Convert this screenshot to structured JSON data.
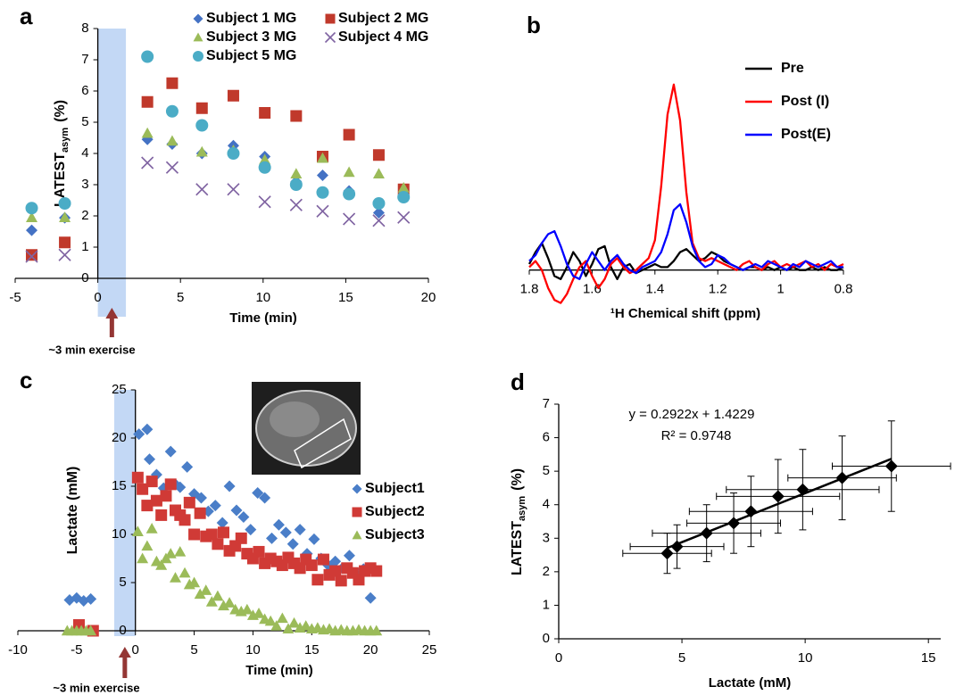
{
  "chart_data": [
    {
      "type": "scatter",
      "panel": "a",
      "ylabel": "LATEST",
      "ylabel_sub": "asym",
      "ylabel_unit": "(%)",
      "xlabel": "Time (min)",
      "annotation": "~3 min exercise",
      "xlim": [
        -5,
        20
      ],
      "xticks": [
        -5,
        0,
        5,
        10,
        15,
        20
      ],
      "ylim": [
        0,
        8
      ],
      "yticks": [
        0,
        1,
        2,
        3,
        4,
        5,
        6,
        7,
        8
      ],
      "shade_x": [
        0,
        1.7
      ],
      "x": [
        -4,
        -2,
        3,
        4.5,
        6.3,
        8.2,
        10.1,
        12,
        13.6,
        15.2,
        17,
        18.5
      ],
      "series": [
        {
          "name": "Subject 1 MG",
          "color": "#4472c4",
          "marker": "diamond",
          "values": [
            1.54,
            1.94,
            4.45,
            4.3,
            4.0,
            4.25,
            3.9,
            3.1,
            3.3,
            2.8,
            2.1,
            2.6
          ]
        },
        {
          "name": "Subject 2 MG",
          "color": "#c0392b",
          "marker": "square",
          "values": [
            0.75,
            1.15,
            5.65,
            6.25,
            5.45,
            5.85,
            5.3,
            5.2,
            3.9,
            4.6,
            3.95,
            2.85
          ]
        },
        {
          "name": "Subject 3 MG",
          "color": "#9bbb59",
          "marker": "triangle",
          "values": [
            1.95,
            1.95,
            4.65,
            4.4,
            4.05,
            4.1,
            3.8,
            3.35,
            3.85,
            3.4,
            3.35,
            2.9
          ]
        },
        {
          "name": "Subject 4 MG",
          "color": "#8064a2",
          "marker": "x",
          "values": [
            0.7,
            0.75,
            3.7,
            3.55,
            2.85,
            2.85,
            2.45,
            2.35,
            2.15,
            1.9,
            1.85,
            1.95
          ]
        },
        {
          "name": "Subject 5 MG",
          "color": "#4bacc6",
          "marker": "circle",
          "values": [
            2.25,
            2.4,
            7.1,
            5.35,
            4.9,
            4.0,
            3.55,
            3.0,
            2.75,
            2.7,
            2.4,
            2.6
          ]
        }
      ]
    },
    {
      "type": "line",
      "panel": "b",
      "xlabel": "¹H Chemical shift (ppm)",
      "xlim": [
        1.8,
        0.8
      ],
      "xticks": [
        1.8,
        1.6,
        1.4,
        1.2,
        1,
        0.8
      ],
      "ylim": [
        -1.5,
        7
      ],
      "x": [
        1.8,
        1.78,
        1.76,
        1.74,
        1.72,
        1.7,
        1.68,
        1.66,
        1.64,
        1.62,
        1.6,
        1.58,
        1.56,
        1.54,
        1.52,
        1.5,
        1.48,
        1.46,
        1.44,
        1.42,
        1.4,
        1.38,
        1.36,
        1.34,
        1.32,
        1.3,
        1.28,
        1.26,
        1.24,
        1.22,
        1.2,
        1.18,
        1.16,
        1.14,
        1.12,
        1.1,
        1.08,
        1.06,
        1.04,
        1.02,
        1.0,
        0.98,
        0.96,
        0.94,
        0.92,
        0.9,
        0.88,
        0.86,
        0.84,
        0.82,
        0.8
      ],
      "series": [
        {
          "name": "Pre",
          "color": "#000000",
          "values": [
            0.2,
            0.6,
            0.9,
            0.4,
            -0.2,
            -0.3,
            0.1,
            0.6,
            0.3,
            -0.2,
            0.2,
            0.7,
            0.8,
            0.1,
            -0.3,
            0.1,
            0.2,
            -0.1,
            0,
            0.1,
            0.2,
            0.1,
            0.1,
            0.3,
            0.6,
            0.7,
            0.5,
            0.3,
            0.4,
            0.6,
            0.5,
            0.3,
            0.2,
            0.1,
            0,
            0.1,
            0.1,
            0,
            0.1,
            0,
            0.1,
            0,
            0.1,
            0,
            0,
            0.1,
            0,
            0.1,
            0,
            0,
            0.1
          ]
        },
        {
          "name": "Post (I)",
          "color": "#ff0000",
          "values": [
            0.1,
            0.3,
            0,
            -0.6,
            -1.0,
            -1.1,
            -0.8,
            -0.3,
            0.1,
            0.3,
            -0.2,
            -0.6,
            -0.3,
            0.2,
            0.4,
            0.1,
            -0.1,
            0,
            0.2,
            0.4,
            1.0,
            2.8,
            5.2,
            6.2,
            5.0,
            2.6,
            0.9,
            0.4,
            0.3,
            0.4,
            0.3,
            0.2,
            0.1,
            0,
            0.2,
            0.3,
            0.1,
            0,
            0.2,
            0.3,
            0.1,
            0.2,
            0.1,
            0.2,
            0.3,
            0.1,
            0.2,
            0,
            0.2,
            0.1,
            0.2
          ]
        },
        {
          "name": "Post(E)",
          "color": "#0000ff",
          "values": [
            0.3,
            0.5,
            0.9,
            1.2,
            1.3,
            0.8,
            0.2,
            -0.2,
            -0.3,
            0.2,
            0.6,
            0.3,
            0,
            0.3,
            0.5,
            0.2,
            0,
            -0.1,
            0.1,
            0.2,
            0.3,
            0.6,
            1.2,
            2.0,
            2.2,
            1.6,
            0.8,
            0.3,
            0.1,
            0.2,
            0.5,
            0.4,
            0.2,
            0.1,
            0,
            0.1,
            0.2,
            0.1,
            0.3,
            0.2,
            0.1,
            0,
            0.2,
            0.1,
            0.3,
            0.2,
            0.1,
            0.2,
            0.3,
            0.1,
            0.1
          ]
        }
      ]
    },
    {
      "type": "scatter",
      "panel": "c",
      "ylabel": "Lactate (mM)",
      "xlabel": "Time (min)",
      "annotation": "~3 min exercise",
      "xlim": [
        -10,
        25
      ],
      "xticks": [
        -10,
        -5,
        0,
        5,
        10,
        15,
        20,
        25
      ],
      "ylim": [
        0,
        25
      ],
      "yticks": [
        0,
        5,
        10,
        15,
        20,
        25
      ],
      "shade_x": [
        -1.8,
        0
      ],
      "series": [
        {
          "name": "Subject1",
          "color": "#4a7ec8",
          "marker": "diamond",
          "x": [
            -5.6,
            -5,
            -4.4,
            -3.8,
            0.3,
            1.0,
            1.2,
            1.8,
            2.4,
            3.0,
            3.4,
            3.8,
            4.4,
            5.0,
            5.6,
            6.2,
            6.8,
            7.4,
            8.0,
            8.6,
            9.2,
            9.8,
            10.4,
            11.0,
            11.6,
            12.2,
            12.8,
            13.4,
            14.0,
            14.6,
            15.2,
            15.8,
            16.4,
            17.0,
            17.6,
            18.2,
            18.8,
            19.4,
            20.0
          ],
          "values": [
            3.2,
            3.4,
            3.1,
            3.3,
            20.4,
            20.9,
            17.8,
            16.2,
            14.8,
            18.6,
            15.2,
            14.9,
            17.0,
            14.2,
            13.8,
            12.4,
            13.0,
            11.2,
            15.0,
            12.5,
            11.8,
            10.5,
            14.3,
            13.8,
            9.6,
            11.0,
            10.2,
            9.0,
            10.5,
            8.0,
            9.5,
            7.5,
            6.8,
            7.2,
            6.5,
            7.8,
            5.9,
            6.4,
            3.4
          ]
        },
        {
          "name": "Subject2",
          "color": "#d03a36",
          "marker": "square",
          "x": [
            -4.8,
            -3.6,
            0.2,
            0.6,
            1.0,
            1.4,
            1.8,
            2.2,
            2.6,
            3.0,
            3.4,
            3.8,
            4.2,
            4.6,
            5.0,
            5.5,
            6.0,
            6.5,
            7.0,
            7.5,
            8.0,
            8.5,
            9.0,
            9.5,
            10.0,
            10.5,
            11.0,
            11.5,
            12.0,
            12.5,
            13.0,
            13.5,
            14.0,
            14.5,
            15.0,
            15.5,
            16.0,
            16.5,
            17.0,
            17.5,
            18.0,
            18.5,
            19.0,
            19.5,
            20.0,
            20.5
          ],
          "values": [
            0.6,
            0,
            15.9,
            14.7,
            13.0,
            15.5,
            13.5,
            12.0,
            14.0,
            15.2,
            12.5,
            12.0,
            11.5,
            13.3,
            10.0,
            12.2,
            9.8,
            10.0,
            9.0,
            10.2,
            8.3,
            8.8,
            9.6,
            8.0,
            7.5,
            8.2,
            7.0,
            7.5,
            7.2,
            6.8,
            7.6,
            7.0,
            6.5,
            7.4,
            6.8,
            5.3,
            7.4,
            5.8,
            6.2,
            5.2,
            6.5,
            6.0,
            5.3,
            6.2,
            6.5,
            6.2
          ]
        },
        {
          "name": "Subject3",
          "color": "#9bbb59",
          "marker": "triangle",
          "x": [
            -5.8,
            -5.4,
            -5.0,
            -4.6,
            -4.2,
            -3.8,
            0.2,
            0.6,
            1.0,
            1.4,
            1.8,
            2.2,
            2.6,
            3.0,
            3.4,
            3.8,
            4.2,
            4.6,
            5.0,
            5.5,
            6.0,
            6.5,
            7.0,
            7.5,
            8.0,
            8.5,
            9.0,
            9.5,
            10.0,
            10.5,
            11.0,
            11.5,
            12.0,
            12.5,
            13.0,
            13.5,
            14.0,
            14.5,
            15.0,
            15.5,
            16.0,
            16.5,
            17.0,
            17.5,
            18.0,
            18.5,
            19.0,
            19.5,
            20.0,
            20.5
          ],
          "values": [
            0,
            0,
            0,
            0,
            0,
            0,
            10.3,
            7.5,
            8.8,
            10.6,
            7.2,
            6.8,
            7.5,
            8.0,
            5.5,
            8.2,
            6.0,
            4.8,
            5.0,
            3.8,
            4.2,
            3.0,
            3.6,
            2.6,
            2.9,
            2.2,
            2.0,
            2.2,
            1.6,
            1.8,
            1.2,
            1.0,
            0.5,
            1.3,
            0.2,
            0.8,
            0.3,
            0.5,
            0.2,
            0.3,
            0.1,
            0.2,
            0,
            0.1,
            0,
            0,
            0.1,
            0,
            0,
            0
          ]
        }
      ]
    },
    {
      "type": "errorbar",
      "panel": "d",
      "ylabel": "LATEST",
      "ylabel_sub": "asym",
      "ylabel_unit": "(%)",
      "xlabel": "Lactate (mM)",
      "xlim": [
        0,
        15.5
      ],
      "xticks": [
        0,
        5,
        10,
        15
      ],
      "ylim": [
        0,
        7
      ],
      "yticks": [
        0,
        1,
        2,
        3,
        4,
        5,
        6,
        7
      ],
      "fit": {
        "slope": 0.2922,
        "intercept": 1.4229,
        "label": "y = 0.2922x + 1.4229",
        "r2_label": "R² = 0.9748"
      },
      "series": [
        {
          "color": "#000000",
          "marker": "diamond",
          "x": [
            4.4,
            4.8,
            6.0,
            7.1,
            7.8,
            8.9,
            9.9,
            11.5,
            13.5
          ],
          "values": [
            2.55,
            2.75,
            3.15,
            3.45,
            3.8,
            4.25,
            4.45,
            4.8,
            5.15
          ],
          "xerr": [
            1.8,
            1.9,
            2.2,
            1.9,
            2.5,
            2.5,
            3.1,
            2.2,
            2.4
          ],
          "yerr": [
            0.6,
            0.65,
            0.85,
            0.9,
            1.05,
            1.1,
            1.2,
            1.25,
            1.35
          ]
        }
      ]
    }
  ]
}
